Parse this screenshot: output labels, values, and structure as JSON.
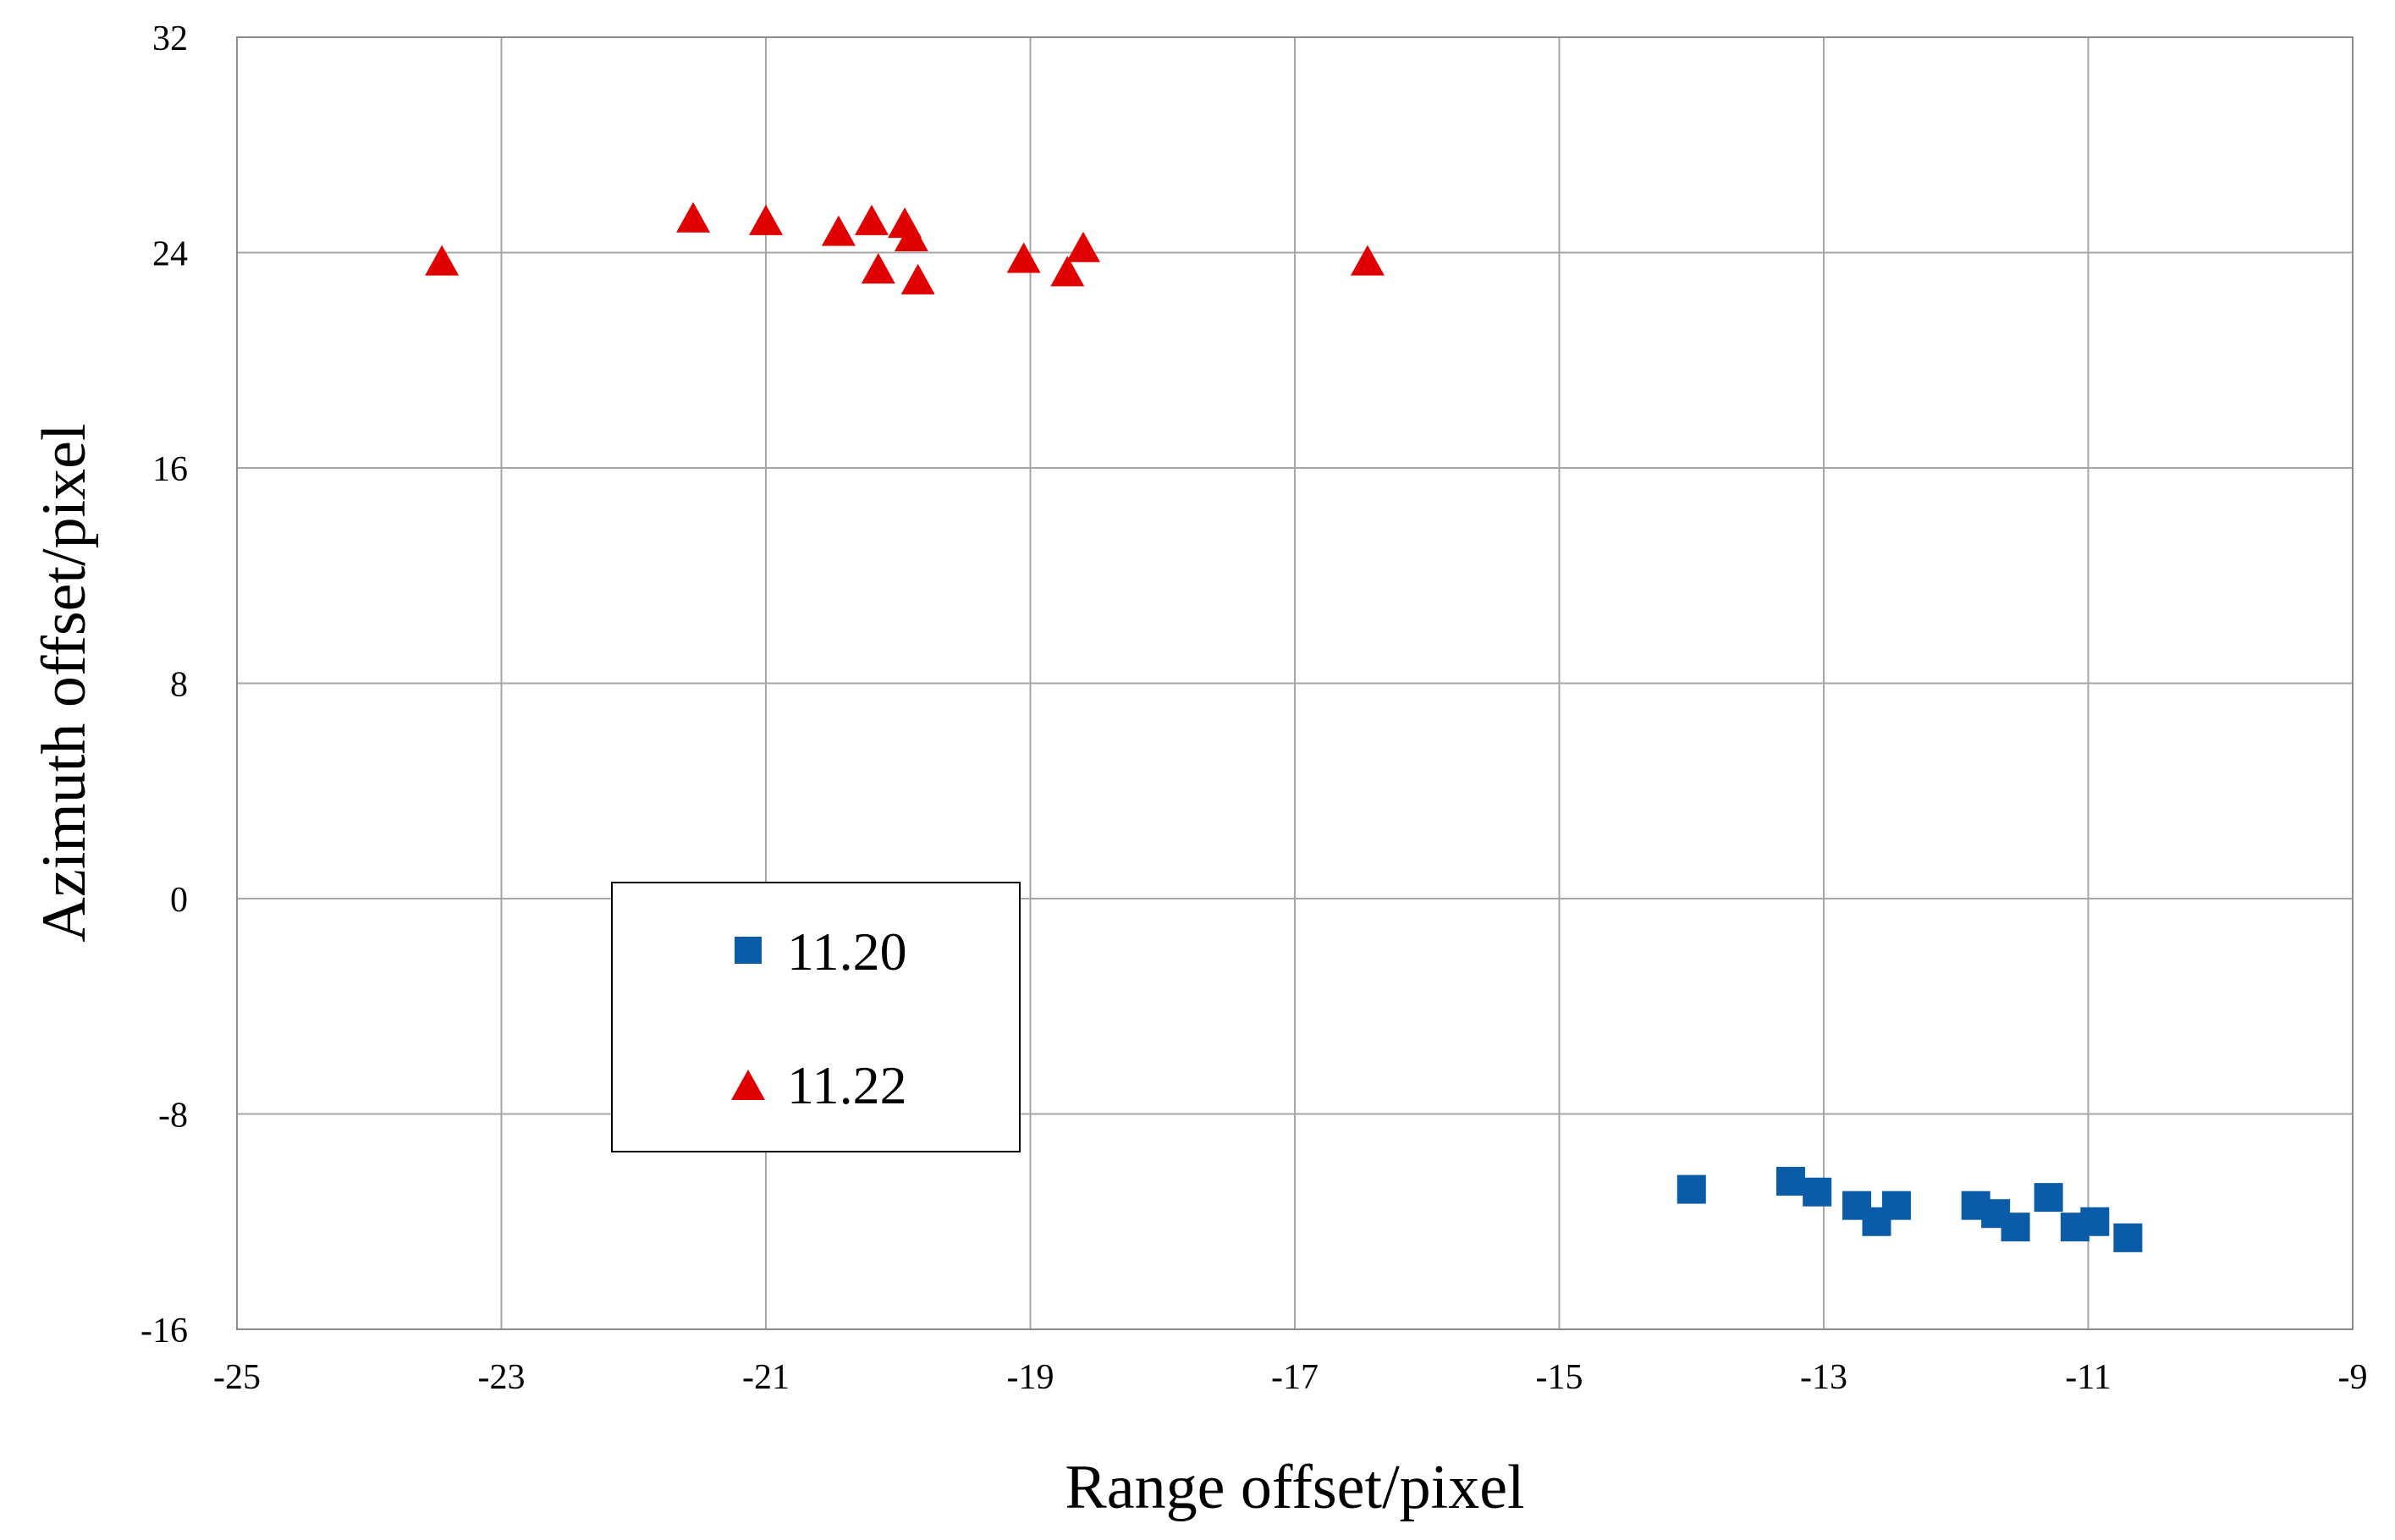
{
  "chart_data": {
    "type": "scatter",
    "title": "",
    "xlabel": "Range offset/pixel",
    "ylabel": "Azimuth offset/pixel",
    "xlim": [
      -25,
      -9
    ],
    "ylim": [
      -16,
      32
    ],
    "xticks": [
      -25,
      -23,
      -21,
      -19,
      -17,
      -15,
      -13,
      -11,
      -9
    ],
    "yticks": [
      -16,
      -8,
      0,
      8,
      16,
      24,
      32
    ],
    "grid": true,
    "legend_position": "center-left",
    "series": [
      {
        "name": "11.20",
        "marker": "square",
        "color": "#0a5ca8",
        "points": [
          {
            "x": -14.0,
            "y": -10.8
          },
          {
            "x": -13.25,
            "y": -10.5
          },
          {
            "x": -13.05,
            "y": -10.9
          },
          {
            "x": -12.75,
            "y": -11.4
          },
          {
            "x": -12.6,
            "y": -12.0
          },
          {
            "x": -12.45,
            "y": -11.4
          },
          {
            "x": -11.85,
            "y": -11.4
          },
          {
            "x": -11.7,
            "y": -11.7
          },
          {
            "x": -11.55,
            "y": -12.2
          },
          {
            "x": -11.3,
            "y": -11.1
          },
          {
            "x": -11.1,
            "y": -12.2
          },
          {
            "x": -10.95,
            "y": -12.0
          },
          {
            "x": -10.7,
            "y": -12.6
          }
        ]
      },
      {
        "name": "11.22",
        "marker": "triangle",
        "color": "#e00000",
        "points": [
          {
            "x": -23.45,
            "y": 23.6
          },
          {
            "x": -21.55,
            "y": 25.2
          },
          {
            "x": -21.0,
            "y": 25.1
          },
          {
            "x": -20.45,
            "y": 24.7
          },
          {
            "x": -20.2,
            "y": 25.1
          },
          {
            "x": -20.15,
            "y": 23.3
          },
          {
            "x": -19.95,
            "y": 25.0
          },
          {
            "x": -19.9,
            "y": 24.5
          },
          {
            "x": -19.85,
            "y": 22.9
          },
          {
            "x": -19.05,
            "y": 23.7
          },
          {
            "x": -18.72,
            "y": 23.2
          },
          {
            "x": -18.6,
            "y": 24.1
          },
          {
            "x": -16.45,
            "y": 23.6
          }
        ]
      }
    ]
  }
}
